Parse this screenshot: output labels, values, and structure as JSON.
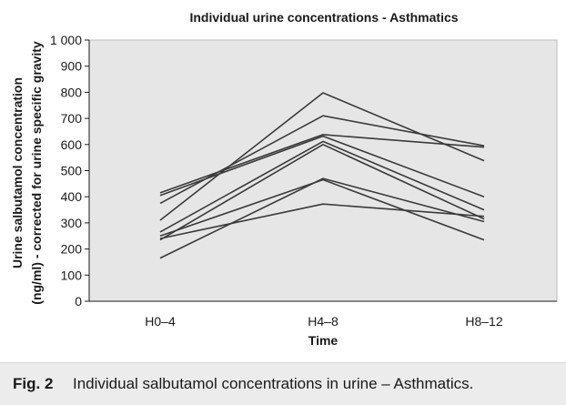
{
  "chart_data": {
    "type": "line",
    "title": "Individual urine concentrations - Asthmatics",
    "xlabel": "Time",
    "ylabel_line1": "Urine salbutamol concentration",
    "ylabel_line2": "(ng/ml) - corrected for urine specific gravity",
    "categories": [
      "H0–4",
      "H4–8",
      "H8–12"
    ],
    "ylim": [
      0,
      1000
    ],
    "yticks": [
      0,
      100,
      200,
      300,
      400,
      500,
      600,
      700,
      800,
      900,
      "1 000"
    ],
    "grid": false,
    "plot_background": "#e6e6e6",
    "line_color": "#3a3a3a",
    "series": [
      {
        "values": [
          310,
          798,
          538
        ]
      },
      {
        "values": [
          375,
          710,
          595
        ]
      },
      {
        "values": [
          415,
          638,
          590
        ]
      },
      {
        "values": [
          405,
          632,
          400
        ]
      },
      {
        "values": [
          265,
          612,
          350
        ]
      },
      {
        "values": [
          235,
          600,
          315
        ]
      },
      {
        "values": [
          165,
          470,
          305
        ]
      },
      {
        "values": [
          250,
          465,
          235
        ]
      },
      {
        "values": [
          240,
          372,
          325
        ]
      }
    ]
  },
  "caption": {
    "label": "Fig. 2",
    "text": "Individual salbutamol concentrations in urine – Asthmatics."
  }
}
